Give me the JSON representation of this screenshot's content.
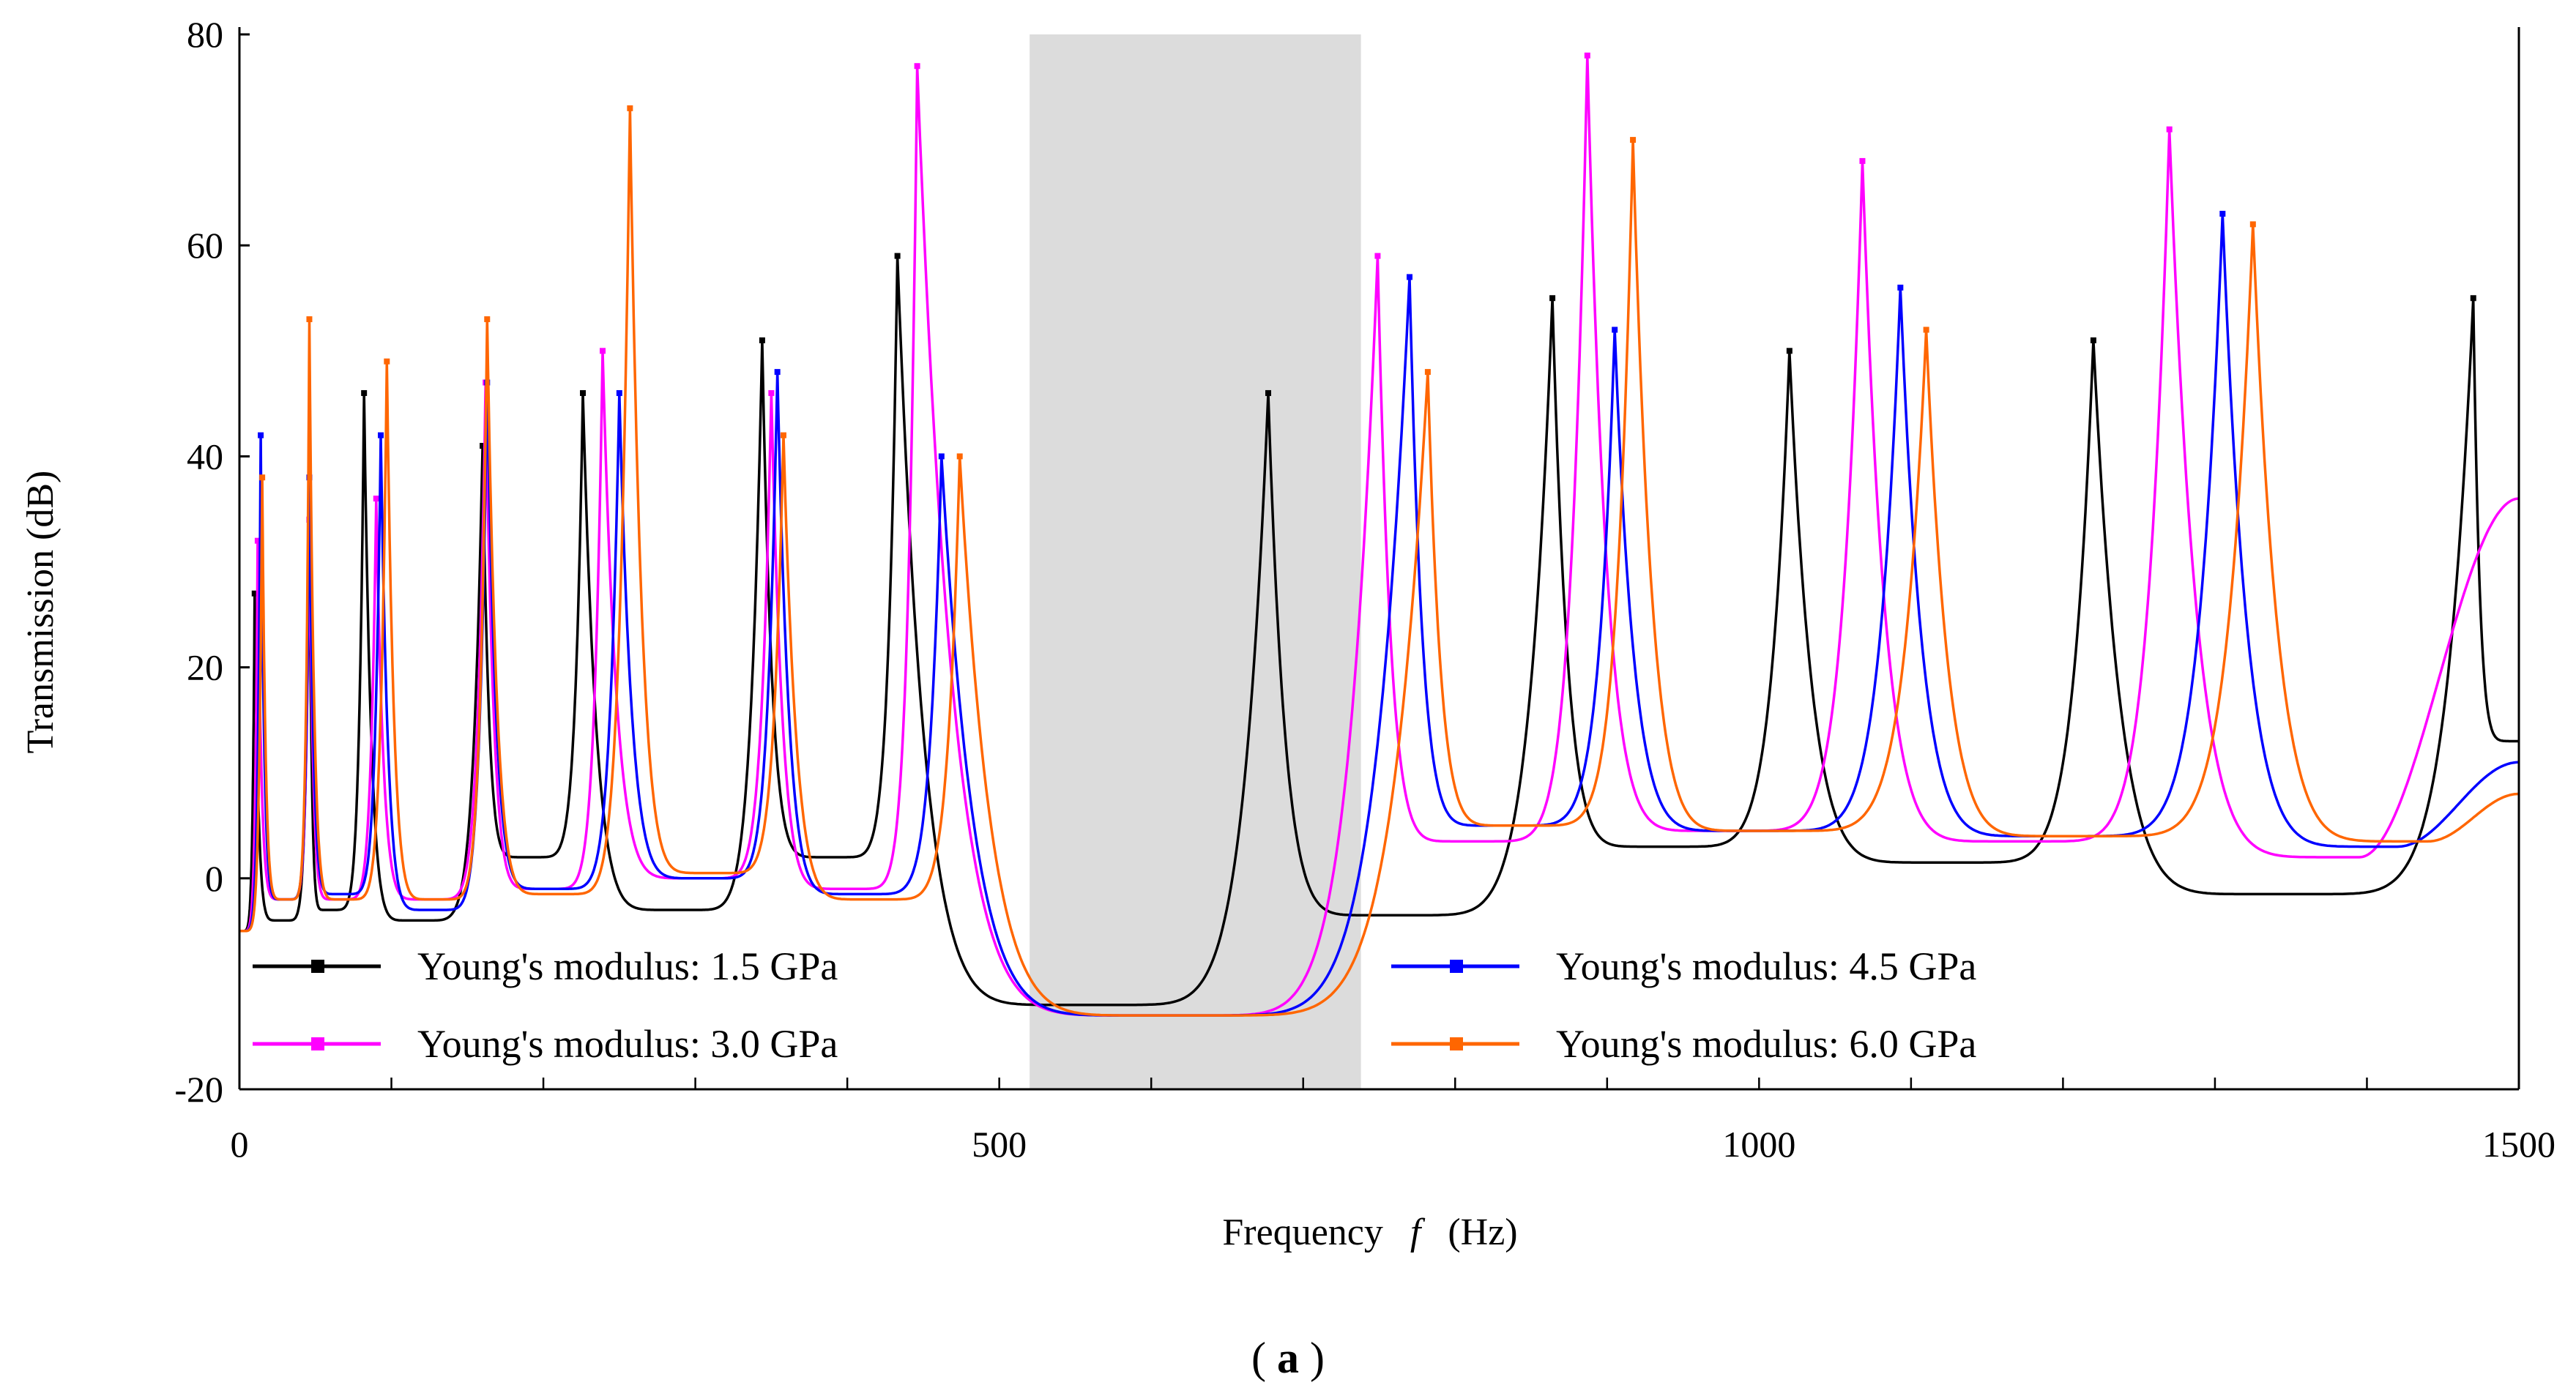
{
  "chart_data": {
    "type": "line",
    "title": "",
    "xlabel_prefix": "Frequency",
    "xlabel_var": "f",
    "xlabel_unit": "(Hz)",
    "ylabel": "Transmission (dB)",
    "xlim": [
      0,
      1500
    ],
    "ylim": [
      -20,
      80
    ],
    "x_ticks": [
      0,
      500,
      1000,
      1500
    ],
    "x_tick_labels": [
      "0",
      "500",
      "1000",
      "1500"
    ],
    "x_minor_step": 100,
    "y_ticks": [
      -20,
      0,
      20,
      40,
      60,
      80
    ],
    "y_tick_labels": [
      "-20",
      "0",
      "20",
      "40",
      "60",
      "80"
    ],
    "band_gap": [
      520,
      738
    ],
    "grid": false,
    "legend_position": "lower-left",
    "series": [
      {
        "name": "Young's modulus: 1.5 GPa",
        "color": "#000000",
        "peaks": [
          [
            10,
            27
          ],
          [
            46,
            34
          ],
          [
            82,
            46
          ],
          [
            160,
            41
          ],
          [
            226,
            46
          ],
          [
            344,
            51
          ],
          [
            433,
            59
          ],
          [
            677,
            46
          ],
          [
            864,
            55
          ],
          [
            1020,
            50
          ],
          [
            1220,
            51
          ],
          [
            1470,
            55
          ]
        ],
        "troughs": [
          [
            0,
            -5
          ],
          [
            28,
            -4
          ],
          [
            58,
            -3
          ],
          [
            116,
            -4
          ],
          [
            190,
            2
          ],
          [
            290,
            -3
          ],
          [
            390,
            2
          ],
          [
            560,
            -12
          ],
          [
            756,
            -3.5
          ],
          [
            935,
            3
          ],
          [
            1125,
            1.5
          ],
          [
            1345,
            -1.5
          ],
          [
            1500,
            13
          ]
        ]
      },
      {
        "name": "Young's modulus: 3.0 GPa",
        "color": "#ff00ff",
        "peaks": [
          [
            12,
            32
          ],
          [
            46,
            34
          ],
          [
            90,
            36
          ],
          [
            162,
            47
          ],
          [
            239,
            50
          ],
          [
            350,
            46
          ],
          [
            446,
            77
          ],
          [
            749,
            59
          ],
          [
            887,
            78
          ],
          [
            1068,
            68
          ],
          [
            1270,
            71
          ]
        ],
        "troughs": [
          [
            0,
            -5
          ],
          [
            30,
            -2
          ],
          [
            64,
            -2
          ],
          [
            124,
            -2
          ],
          [
            200,
            -1
          ],
          [
            304,
            0
          ],
          [
            402,
            -1
          ],
          [
            612,
            -13
          ],
          [
            810,
            3.5
          ],
          [
            977,
            4.5
          ],
          [
            1172,
            3.5
          ],
          [
            1395,
            2
          ],
          [
            1500,
            36
          ]
        ]
      },
      {
        "name": "Young's modulus: 4.5 GPa",
        "color": "#0000ff",
        "peaks": [
          [
            14,
            42
          ],
          [
            46,
            38
          ],
          [
            93,
            42
          ],
          [
            163,
            47
          ],
          [
            250,
            46
          ],
          [
            354,
            48
          ],
          [
            462,
            40
          ],
          [
            770,
            57
          ],
          [
            905,
            52
          ],
          [
            1093,
            56
          ],
          [
            1305,
            63
          ]
        ],
        "troughs": [
          [
            0,
            -5
          ],
          [
            30,
            -2
          ],
          [
            66,
            -1.5
          ],
          [
            127,
            -3
          ],
          [
            205,
            -1
          ],
          [
            308,
            0
          ],
          [
            408,
            -1.5
          ],
          [
            612,
            -13
          ],
          [
            830,
            5
          ],
          [
            995,
            4.5
          ],
          [
            1195,
            4
          ],
          [
            1420,
            3
          ],
          [
            1500,
            11
          ]
        ]
      },
      {
        "name": "Young's modulus: 6.0 GPa",
        "color": "#ff6600",
        "peaks": [
          [
            15,
            38
          ],
          [
            46,
            53
          ],
          [
            97,
            49
          ],
          [
            163,
            53
          ],
          [
            257,
            73
          ],
          [
            358,
            42
          ],
          [
            474,
            40
          ],
          [
            782,
            48
          ],
          [
            917,
            70
          ],
          [
            1110,
            52
          ],
          [
            1325,
            62
          ]
        ],
        "troughs": [
          [
            0,
            -5
          ],
          [
            31,
            -2
          ],
          [
            68,
            -2
          ],
          [
            130,
            -2
          ],
          [
            208,
            -1.5
          ],
          [
            312,
            0.5
          ],
          [
            418,
            -2
          ],
          [
            618,
            -13
          ],
          [
            842,
            5
          ],
          [
            1005,
            4.5
          ],
          [
            1210,
            4
          ],
          [
            1440,
            3.5
          ],
          [
            1500,
            8
          ]
        ]
      }
    ]
  },
  "caption": {
    "prefix": "(",
    "letter": "a",
    "suffix": ")"
  }
}
